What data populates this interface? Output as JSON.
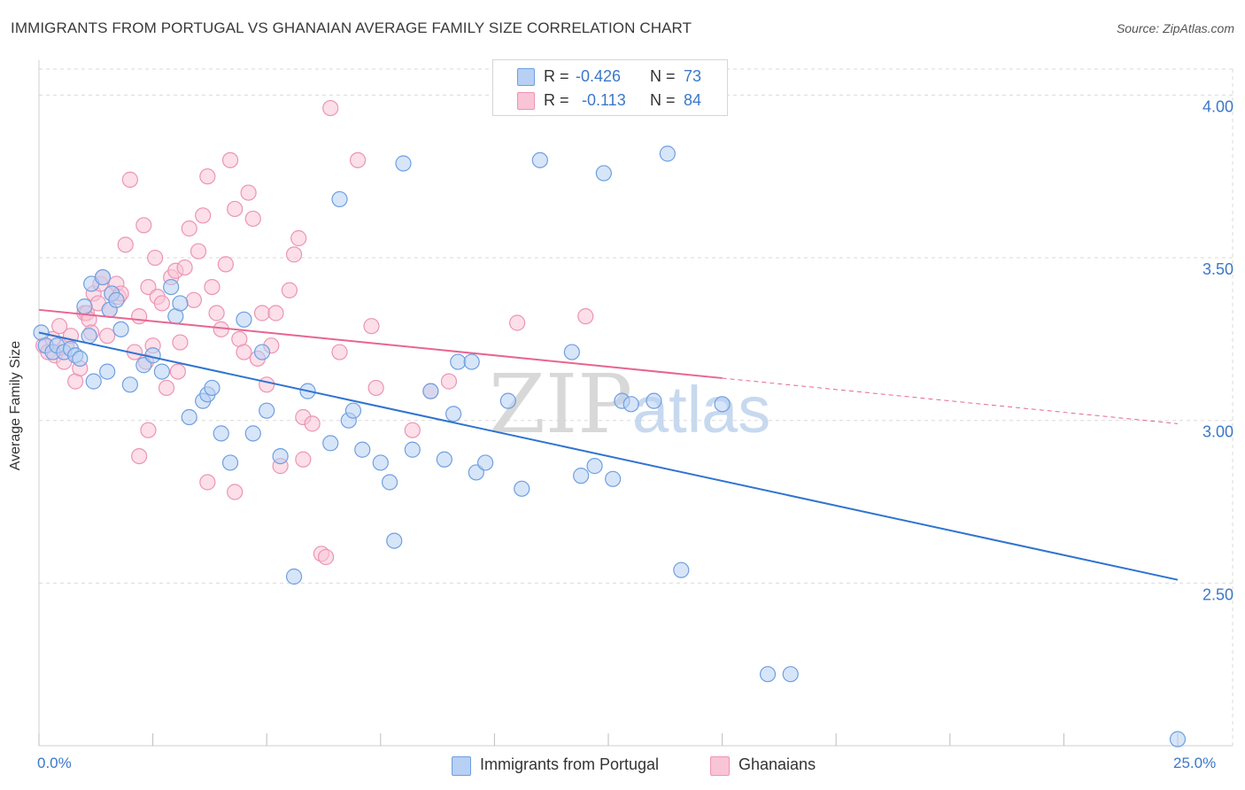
{
  "title": "IMMIGRANTS FROM PORTUGAL VS GHANAIAN AVERAGE FAMILY SIZE CORRELATION CHART",
  "source": "Source: ZipAtlas.com",
  "watermark": {
    "zip": "ZIP",
    "atlas": "atlas"
  },
  "legend": {
    "rows": [
      {
        "r_label": "R =",
        "r_value": "-0.426",
        "n_label": "N =",
        "n_value": "73"
      },
      {
        "r_label": "R =",
        "r_value": "-0.113",
        "n_label": "N =",
        "n_value": "84"
      }
    ]
  },
  "colors": {
    "blue_fill": "#b7d0f4",
    "blue_stroke": "#6f9fe0",
    "blue_line": "#2f74d0",
    "pink_fill": "#f9c4d6",
    "pink_stroke": "#ec94b4",
    "pink_line": "#e8668f",
    "grid": "#d9d9d9",
    "axis_label": "#3b78c9"
  },
  "chart_data": {
    "type": "scatter",
    "title": "IMMIGRANTS FROM PORTUGAL VS GHANAIAN AVERAGE FAMILY SIZE CORRELATION CHART",
    "xlabel": "",
    "ylabel": "Average Family Size",
    "xlim": [
      0,
      25
    ],
    "ylim": [
      2.0,
      4.08
    ],
    "x_tick_labels": [
      "0.0%",
      "25.0%"
    ],
    "y_ticks": [
      2.5,
      3.0,
      3.5,
      4.0
    ],
    "y_tick_labels": [
      "2.50",
      "3.00",
      "3.50",
      "4.00"
    ],
    "grid": true,
    "legend_position": "bottom",
    "series": [
      {
        "name": "Immigrants from Portugal",
        "color": "#6f9fe0",
        "r": -0.426,
        "n": 73,
        "trend": {
          "x0": 0.0,
          "y0": 3.27,
          "x1": 25.0,
          "y1": 2.51,
          "solid_to": 25.0
        },
        "points": [
          [
            0.05,
            3.27
          ],
          [
            0.15,
            3.23
          ],
          [
            0.3,
            3.21
          ],
          [
            0.4,
            3.23
          ],
          [
            0.55,
            3.21
          ],
          [
            0.7,
            3.22
          ],
          [
            0.8,
            3.2
          ],
          [
            0.9,
            3.19
          ],
          [
            1.0,
            3.35
          ],
          [
            1.1,
            3.26
          ],
          [
            1.15,
            3.42
          ],
          [
            1.2,
            3.12
          ],
          [
            1.4,
            3.44
          ],
          [
            1.5,
            3.15
          ],
          [
            1.55,
            3.34
          ],
          [
            1.6,
            3.39
          ],
          [
            1.7,
            3.37
          ],
          [
            1.8,
            3.28
          ],
          [
            2.0,
            3.11
          ],
          [
            2.3,
            3.17
          ],
          [
            2.5,
            3.2
          ],
          [
            2.7,
            3.15
          ],
          [
            2.9,
            3.41
          ],
          [
            3.0,
            3.32
          ],
          [
            3.1,
            3.36
          ],
          [
            3.3,
            3.01
          ],
          [
            3.6,
            3.06
          ],
          [
            3.7,
            3.08
          ],
          [
            3.8,
            3.1
          ],
          [
            4.0,
            2.96
          ],
          [
            4.2,
            2.87
          ],
          [
            4.5,
            3.31
          ],
          [
            4.7,
            2.96
          ],
          [
            4.9,
            3.21
          ],
          [
            5.0,
            3.03
          ],
          [
            5.3,
            2.89
          ],
          [
            5.6,
            2.52
          ],
          [
            5.9,
            3.09
          ],
          [
            6.4,
            2.93
          ],
          [
            6.6,
            3.68
          ],
          [
            6.8,
            3.0
          ],
          [
            6.9,
            3.03
          ],
          [
            7.1,
            2.91
          ],
          [
            7.5,
            2.87
          ],
          [
            7.7,
            2.81
          ],
          [
            7.8,
            2.63
          ],
          [
            8.0,
            3.79
          ],
          [
            8.2,
            2.91
          ],
          [
            8.6,
            3.09
          ],
          [
            8.9,
            2.88
          ],
          [
            9.1,
            3.02
          ],
          [
            9.2,
            3.18
          ],
          [
            9.5,
            3.18
          ],
          [
            9.6,
            2.84
          ],
          [
            9.8,
            2.87
          ],
          [
            10.3,
            3.06
          ],
          [
            10.6,
            2.79
          ],
          [
            10.8,
            3.96
          ],
          [
            11.0,
            3.8
          ],
          [
            11.7,
            3.21
          ],
          [
            11.9,
            2.83
          ],
          [
            12.2,
            2.86
          ],
          [
            12.4,
            3.76
          ],
          [
            12.6,
            2.82
          ],
          [
            12.8,
            3.06
          ],
          [
            13.0,
            3.05
          ],
          [
            13.5,
            3.06
          ],
          [
            13.8,
            3.82
          ],
          [
            14.1,
            2.54
          ],
          [
            15.0,
            3.05
          ],
          [
            16.0,
            2.22
          ],
          [
            16.5,
            2.22
          ],
          [
            25.0,
            2.02
          ]
        ]
      },
      {
        "name": "Ghanaians",
        "color": "#ec94b4",
        "r": -0.113,
        "n": 84,
        "trend": {
          "x0": 0.0,
          "y0": 3.34,
          "x1": 25.0,
          "y1": 2.99,
          "solid_to": 15.0
        },
        "points": [
          [
            0.1,
            3.23
          ],
          [
            0.2,
            3.21
          ],
          [
            0.3,
            3.25
          ],
          [
            0.35,
            3.2
          ],
          [
            0.45,
            3.29
          ],
          [
            0.55,
            3.18
          ],
          [
            0.6,
            3.23
          ],
          [
            0.7,
            3.26
          ],
          [
            0.8,
            3.12
          ],
          [
            0.9,
            3.16
          ],
          [
            1.0,
            3.33
          ],
          [
            1.05,
            3.33
          ],
          [
            1.1,
            3.31
          ],
          [
            1.15,
            3.27
          ],
          [
            1.2,
            3.39
          ],
          [
            1.3,
            3.36
          ],
          [
            1.35,
            3.42
          ],
          [
            1.4,
            3.44
          ],
          [
            1.5,
            3.26
          ],
          [
            1.55,
            3.34
          ],
          [
            1.6,
            3.39
          ],
          [
            1.7,
            3.42
          ],
          [
            1.75,
            3.38
          ],
          [
            1.8,
            3.39
          ],
          [
            1.9,
            3.54
          ],
          [
            2.0,
            3.74
          ],
          [
            2.1,
            3.21
          ],
          [
            2.2,
            3.32
          ],
          [
            2.3,
            3.6
          ],
          [
            2.35,
            3.18
          ],
          [
            2.4,
            3.41
          ],
          [
            2.5,
            3.23
          ],
          [
            2.55,
            3.5
          ],
          [
            2.6,
            3.38
          ],
          [
            2.7,
            3.36
          ],
          [
            2.8,
            3.1
          ],
          [
            2.9,
            3.44
          ],
          [
            3.0,
            3.46
          ],
          [
            3.05,
            3.15
          ],
          [
            3.1,
            3.24
          ],
          [
            3.2,
            3.47
          ],
          [
            3.3,
            3.59
          ],
          [
            3.4,
            3.37
          ],
          [
            3.5,
            3.52
          ],
          [
            3.6,
            3.63
          ],
          [
            3.7,
            3.75
          ],
          [
            3.8,
            3.41
          ],
          [
            3.9,
            3.33
          ],
          [
            4.0,
            3.28
          ],
          [
            4.1,
            3.48
          ],
          [
            4.2,
            3.8
          ],
          [
            4.3,
            3.65
          ],
          [
            4.4,
            3.25
          ],
          [
            4.5,
            3.21
          ],
          [
            4.6,
            3.7
          ],
          [
            4.7,
            3.62
          ],
          [
            4.8,
            3.19
          ],
          [
            4.9,
            3.33
          ],
          [
            5.0,
            3.11
          ],
          [
            5.1,
            3.23
          ],
          [
            5.2,
            3.33
          ],
          [
            5.3,
            2.86
          ],
          [
            5.5,
            3.4
          ],
          [
            5.6,
            3.51
          ],
          [
            5.7,
            3.56
          ],
          [
            5.8,
            3.01
          ],
          [
            6.0,
            2.99
          ],
          [
            6.2,
            2.59
          ],
          [
            6.4,
            3.96
          ],
          [
            6.6,
            3.21
          ],
          [
            7.0,
            3.8
          ],
          [
            7.3,
            3.29
          ],
          [
            7.4,
            3.1
          ],
          [
            8.2,
            2.97
          ],
          [
            8.6,
            3.09
          ],
          [
            9.0,
            3.12
          ],
          [
            10.5,
            3.3
          ],
          [
            12.0,
            3.32
          ],
          [
            2.4,
            2.97
          ],
          [
            2.2,
            2.89
          ],
          [
            3.7,
            2.81
          ],
          [
            4.3,
            2.78
          ],
          [
            5.8,
            2.88
          ],
          [
            6.3,
            2.58
          ]
        ]
      }
    ]
  }
}
